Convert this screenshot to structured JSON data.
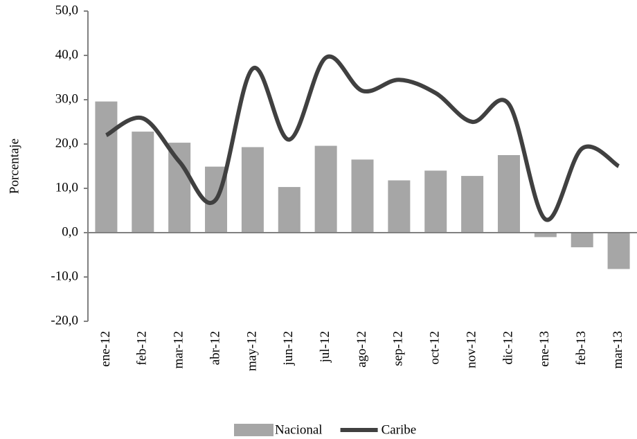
{
  "chart_data": {
    "type": "bar_line",
    "y_label": "Porcentaje",
    "categories": [
      "ene-12",
      "feb-12",
      "mar-12",
      "abr-12",
      "may-12",
      "jun-12",
      "jul-12",
      "ago-12",
      "sep-12",
      "oct-12",
      "nov-12",
      "dic-12",
      "ene-13",
      "feb-13",
      "mar-13"
    ],
    "series": [
      {
        "name": "Nacional",
        "type": "bar",
        "color": "#a6a6a6",
        "values": [
          29.6,
          22.8,
          20.3,
          14.9,
          19.3,
          10.3,
          19.6,
          16.5,
          11.8,
          14.0,
          12.8,
          17.5,
          -1.0,
          -3.3,
          -8.2
        ]
      },
      {
        "name": "Caribe",
        "type": "line",
        "color": "#404040",
        "values": [
          22.0,
          25.8,
          16.0,
          7.5,
          37.0,
          21.0,
          39.5,
          32.0,
          34.5,
          31.5,
          25.0,
          29.0,
          3.0,
          19.0,
          15.0
        ]
      }
    ],
    "ylim": [
      -20,
      50
    ],
    "yticks": [
      {
        "value": -20,
        "label": "-20,0"
      },
      {
        "value": -10,
        "label": "-10,0"
      },
      {
        "value": 0,
        "label": "0,0"
      },
      {
        "value": 10,
        "label": "10,0"
      },
      {
        "value": 20,
        "label": "20,0"
      },
      {
        "value": 30,
        "label": "30,0"
      },
      {
        "value": 40,
        "label": "40,0"
      },
      {
        "value": 50,
        "label": "50,0"
      }
    ],
    "grid": false,
    "legend": "bottom"
  }
}
